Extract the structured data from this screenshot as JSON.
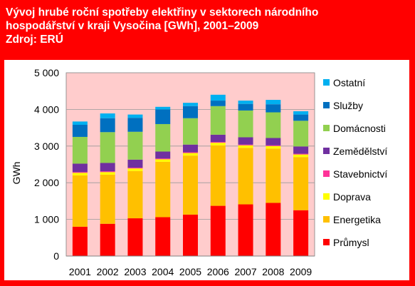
{
  "title_lines": [
    "Vývoj hrubé roční spotřeby elektřiny v sektorech národního",
    "hospodářství v kraji Vysočina [GWh], 2001–2009",
    "Zdroj: ERÚ"
  ],
  "colors": {
    "frame": "#ff0000",
    "plot_bg": "#ffcccc",
    "grid": "#999999"
  },
  "chart_data": {
    "type": "bar",
    "stacked": true,
    "ylabel": "GWh",
    "xlabel": "",
    "ylim": [
      0,
      5000
    ],
    "yticks": [
      0,
      1000,
      2000,
      3000,
      4000,
      5000
    ],
    "ytick_labels": [
      "0",
      "1 000",
      "2 000",
      "3 000",
      "4 000",
      "5 000"
    ],
    "grid": true,
    "legend_position": "right",
    "categories": [
      "2001",
      "2002",
      "2003",
      "2004",
      "2005",
      "2006",
      "2007",
      "2008",
      "2009"
    ],
    "series": [
      {
        "name": "Průmysl",
        "color": "#ff0000",
        "values": [
          800,
          880,
          1030,
          1060,
          1130,
          1370,
          1410,
          1450,
          1250
        ]
      },
      {
        "name": "Energetika",
        "color": "#ffc000",
        "values": [
          1400,
          1340,
          1290,
          1510,
          1610,
          1650,
          1540,
          1480,
          1450
        ]
      },
      {
        "name": "Doprava",
        "color": "#ffff00",
        "values": [
          70,
          70,
          70,
          70,
          70,
          70,
          70,
          70,
          70
        ]
      },
      {
        "name": "Stavebnictví",
        "color": "#ff3399",
        "values": [
          20,
          20,
          20,
          20,
          20,
          20,
          20,
          20,
          20
        ]
      },
      {
        "name": "Zemědělství",
        "color": "#7030a0",
        "values": [
          230,
          230,
          220,
          190,
          210,
          200,
          200,
          200,
          200
        ]
      },
      {
        "name": "Domácnosti",
        "color": "#92d050",
        "values": [
          730,
          840,
          760,
          750,
          720,
          780,
          730,
          700,
          700
        ]
      },
      {
        "name": "Služby",
        "color": "#0070c0",
        "values": [
          330,
          380,
          380,
          400,
          330,
          150,
          180,
          220,
          170
        ]
      },
      {
        "name": "Ostatní",
        "color": "#00b0f0",
        "values": [
          90,
          130,
          90,
          70,
          90,
          160,
          90,
          120,
          90
        ]
      }
    ]
  }
}
